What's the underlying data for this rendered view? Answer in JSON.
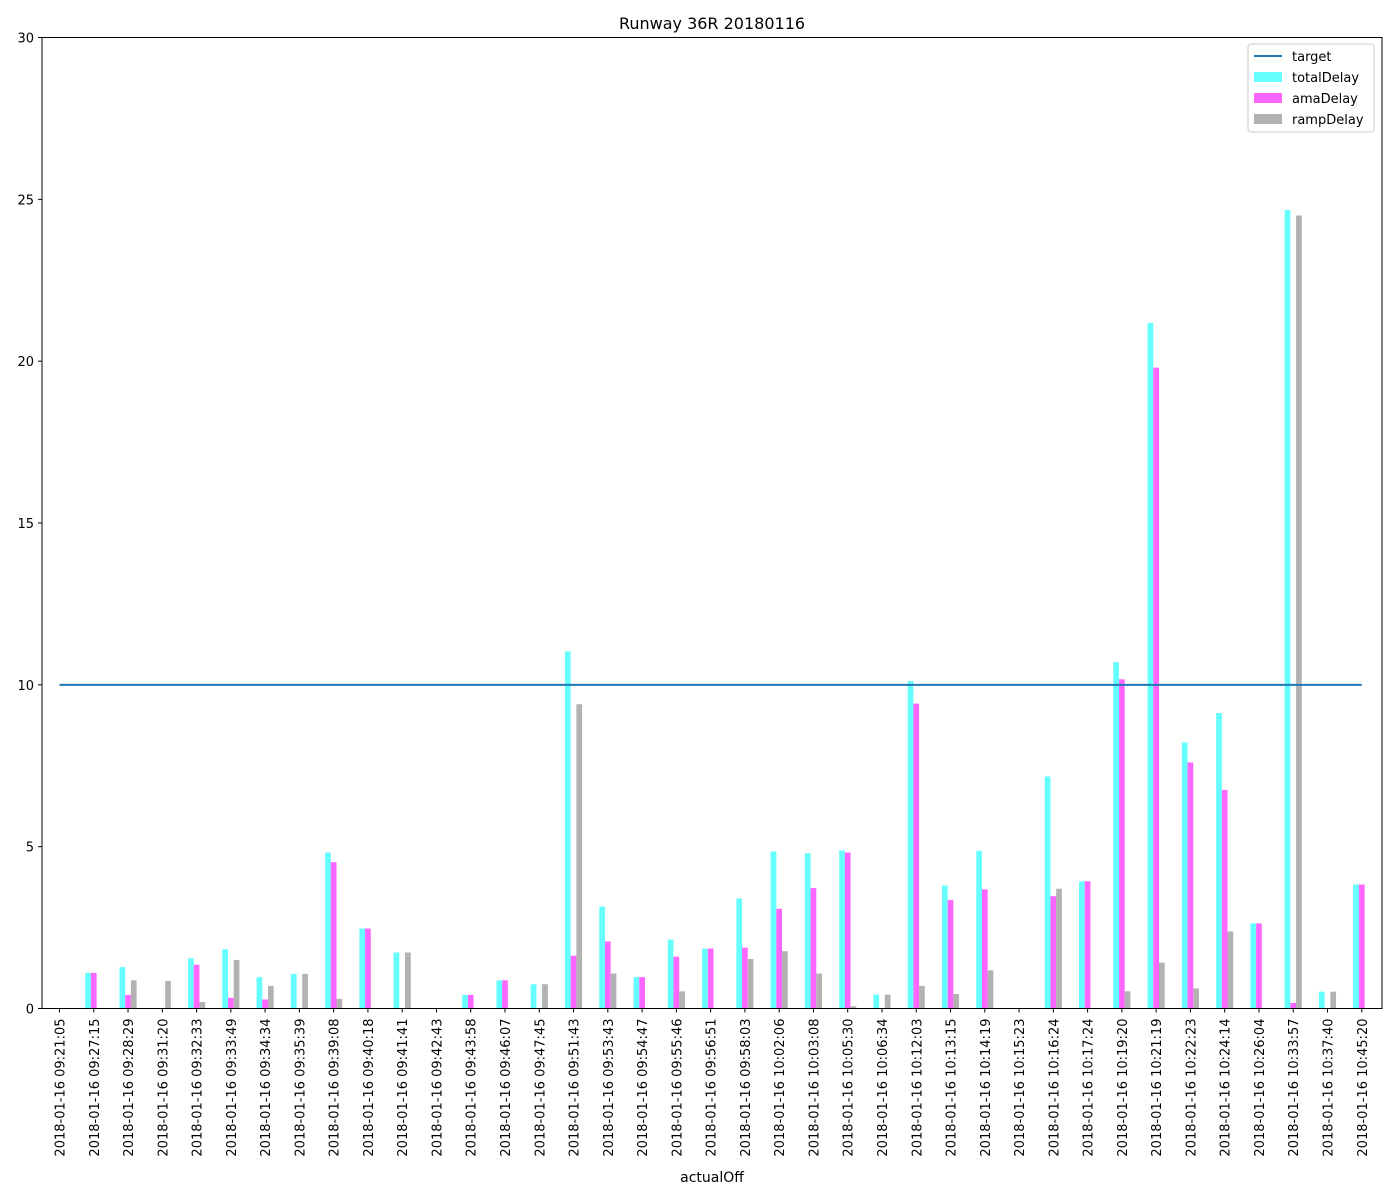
{
  "chart_data": {
    "type": "bar",
    "title": "Runway 36R 20180116",
    "xlabel": "actualOff",
    "ylabel": "",
    "ylim": [
      0,
      30
    ],
    "yticks": [
      0,
      5,
      10,
      15,
      20,
      25,
      30
    ],
    "grid": false,
    "legend_position": "top-right",
    "categories": [
      "2018-01-16 09:21:05",
      "2018-01-16 09:27:15",
      "2018-01-16 09:28:29",
      "2018-01-16 09:31:20",
      "2018-01-16 09:32:33",
      "2018-01-16 09:33:49",
      "2018-01-16 09:34:34",
      "2018-01-16 09:35:39",
      "2018-01-16 09:39:08",
      "2018-01-16 09:40:18",
      "2018-01-16 09:41:41",
      "2018-01-16 09:42:43",
      "2018-01-16 09:43:58",
      "2018-01-16 09:46:07",
      "2018-01-16 09:47:45",
      "2018-01-16 09:51:43",
      "2018-01-16 09:53:43",
      "2018-01-16 09:54:47",
      "2018-01-16 09:55:46",
      "2018-01-16 09:56:51",
      "2018-01-16 09:58:03",
      "2018-01-16 10:02:06",
      "2018-01-16 10:03:08",
      "2018-01-16 10:05:30",
      "2018-01-16 10:06:34",
      "2018-01-16 10:12:03",
      "2018-01-16 10:13:15",
      "2018-01-16 10:14:19",
      "2018-01-16 10:15:23",
      "2018-01-16 10:16:24",
      "2018-01-16 10:17:24",
      "2018-01-16 10:19:20",
      "2018-01-16 10:21:19",
      "2018-01-16 10:22:23",
      "2018-01-16 10:24:14",
      "2018-01-16 10:26:04",
      "2018-01-16 10:33:57",
      "2018-01-16 10:37:40",
      "2018-01-16 10:45:20"
    ],
    "target": {
      "name": "target",
      "value": 10,
      "color": "#1f77b4"
    },
    "series": [
      {
        "name": "totalDelay",
        "color": "#66ffff",
        "values": [
          0,
          1.1,
          1.28,
          0,
          1.55,
          1.83,
          0.97,
          1.07,
          4.82,
          2.47,
          1.73,
          0,
          0.42,
          0.87,
          0.75,
          11.03,
          3.15,
          0.97,
          2.13,
          1.85,
          3.4,
          4.85,
          4.8,
          4.88,
          0.43,
          10.12,
          3.8,
          4.87,
          0,
          7.17,
          3.93,
          10.7,
          21.18,
          8.22,
          9.13,
          2.63,
          24.67,
          0.52,
          3.83
        ]
      },
      {
        "name": "amaDelay",
        "color": "#ff66ff",
        "values": [
          0,
          1.1,
          0.42,
          0,
          1.35,
          0.33,
          0.28,
          0,
          4.52,
          2.47,
          0,
          0,
          0.42,
          0.87,
          0,
          1.63,
          2.07,
          0.97,
          1.6,
          1.85,
          1.88,
          3.08,
          3.72,
          4.82,
          0,
          9.42,
          3.35,
          3.68,
          0,
          3.47,
          3.93,
          10.17,
          19.8,
          7.6,
          6.75,
          2.63,
          0.17,
          0,
          3.83
        ]
      },
      {
        "name": "rampDelay",
        "color": "#b2b2b2",
        "values": [
          0,
          0,
          0.87,
          0.85,
          0.2,
          1.5,
          0.7,
          1.07,
          0.3,
          0,
          1.73,
          0,
          0,
          0,
          0.75,
          9.4,
          1.08,
          0,
          0.53,
          0,
          1.53,
          1.77,
          1.08,
          0.07,
          0.43,
          0.7,
          0.45,
          1.18,
          0,
          3.7,
          0,
          0.53,
          1.42,
          0.62,
          2.38,
          0,
          24.5,
          0.52,
          0
        ]
      }
    ]
  }
}
